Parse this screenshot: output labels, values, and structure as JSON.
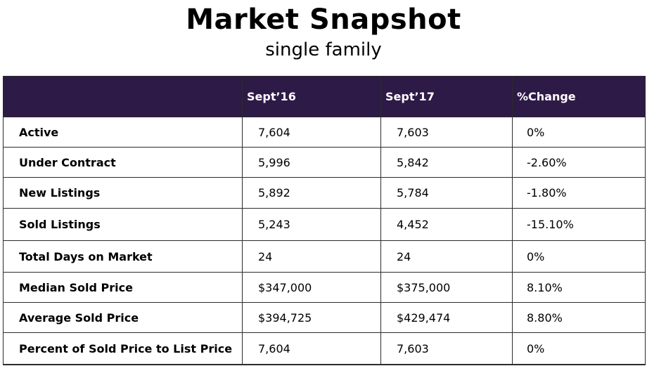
{
  "header": {
    "title": "Market Snapshot",
    "subtitle": "single family"
  },
  "table": {
    "colors": {
      "header_bg": "#2e1a47",
      "header_text": "#ffffff",
      "border": "#2b2b2b"
    },
    "columns": [
      "",
      "Sept’16",
      "Sept’17",
      "%Change"
    ],
    "rows": [
      {
        "label": "Active",
        "sept16": "7,604",
        "sept17": "7,603",
        "change": "0%"
      },
      {
        "label": "Under Contract",
        "sept16": "5,996",
        "sept17": "5,842",
        "change": "-2.60%"
      },
      {
        "label": "New Listings",
        "sept16": "5,892",
        "sept17": "5,784",
        "change": "-1.80%"
      },
      {
        "label": "Sold Listings",
        "sept16": "5,243",
        "sept17": "4,452",
        "change": "-15.10%"
      },
      {
        "label": "Total Days on Market",
        "sept16": "24",
        "sept17": "24",
        "change": "0%"
      },
      {
        "label": "Median Sold Price",
        "sept16": "$347,000",
        "sept17": "$375,000",
        "change": "8.10%"
      },
      {
        "label": "Average Sold Price",
        "sept16": "$394,725",
        "sept17": "$429,474",
        "change": "8.80%"
      },
      {
        "label": "Percent of Sold Price to List Price",
        "sept16": "7,604",
        "sept17": "7,603",
        "change": "0%"
      }
    ]
  }
}
